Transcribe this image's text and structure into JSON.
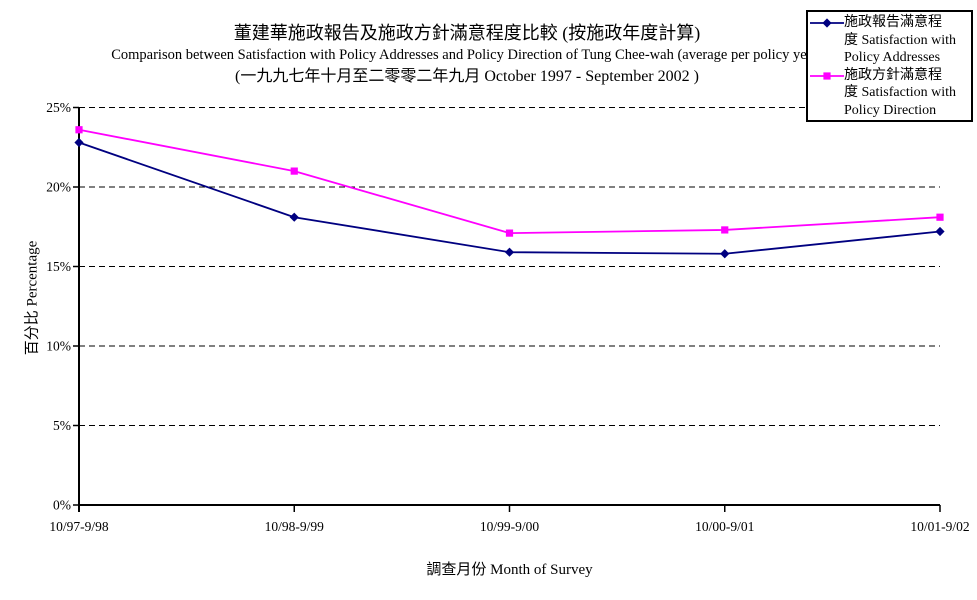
{
  "title": {
    "line1": "董建華施政報告及施政方針滿意程度比較 (按施政年度計算)",
    "line2": "Comparison between Satisfaction with Policy Addresses and Policy Direction of Tung Chee-wah (average per policy year)",
    "line3": "(一九九七年十月至二零零二年九月 October 1997 - September 2002 )"
  },
  "axes": {
    "x_title": "調查月份 Month of Survey",
    "y_title": "百分比 Percentage"
  },
  "legend": {
    "entries": [
      {
        "lines": [
          "施政報告滿意程",
          "度 Satisfaction with",
          "Policy Addresses"
        ],
        "color": "#000080",
        "marker": "diamond"
      },
      {
        "lines": [
          "施政方針滿意程",
          "度 Satisfaction with",
          "Policy Direction"
        ],
        "color": "#ff00ff",
        "marker": "square"
      }
    ]
  },
  "chart_data": {
    "type": "line",
    "title": "董建華施政報告及施政方針滿意程度比較 (按施政年度計算) — Comparison between Satisfaction with Policy Addresses and Policy Direction of Tung Chee-wah (average per policy year) — (一九九七年十月至二零零二年九月 October 1997 - September 2002 )",
    "categories": [
      "10/97-9/98",
      "10/98-9/99",
      "10/99-9/00",
      "10/00-9/01",
      "10/01-9/02"
    ],
    "series": [
      {
        "name": "施政報告滿意程度 Satisfaction with Policy Addresses",
        "color": "#000080",
        "marker": "diamond",
        "values": [
          22.8,
          18.1,
          15.9,
          15.8,
          17.2
        ]
      },
      {
        "name": "施政方針滿意程度 Satisfaction with Policy Direction",
        "color": "#ff00ff",
        "marker": "square",
        "values": [
          23.6,
          21.0,
          17.1,
          17.3,
          18.1
        ]
      }
    ],
    "xlabel": "調查月份 Month of Survey",
    "ylabel": "百分比 Percentage",
    "ylim": [
      0,
      25
    ],
    "ytick_step": 5,
    "ytick_suffix": "%",
    "grid": "horizontal-dashed",
    "legend_position": "top-right"
  }
}
